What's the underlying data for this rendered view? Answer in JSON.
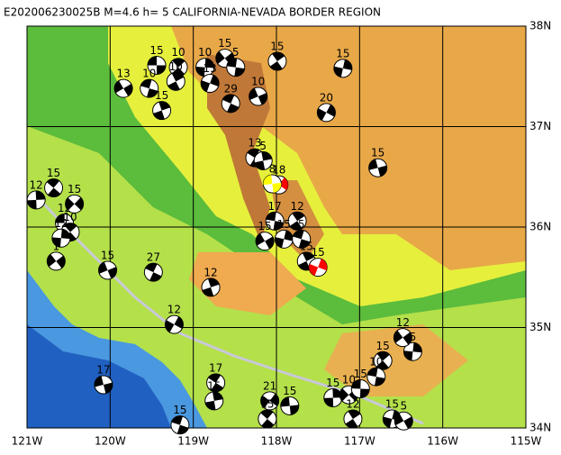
{
  "chart_data": {
    "type": "map",
    "title": "E202006230025B M=4.6 h=  5 CALIFORNIA-NEVADA BORDER REGION",
    "xlim": [
      -121,
      -115
    ],
    "ylim": [
      34,
      38
    ],
    "xticks": [
      {
        "value": -121,
        "label": "121W"
      },
      {
        "value": -120,
        "label": "120W"
      },
      {
        "value": -119,
        "label": "119W"
      },
      {
        "value": -118,
        "label": "118W"
      },
      {
        "value": -117,
        "label": "117W"
      },
      {
        "value": -116,
        "label": "116W"
      },
      {
        "value": -115,
        "label": "115W"
      }
    ],
    "yticks": [
      {
        "value": 34,
        "label": "34N"
      },
      {
        "value": 35,
        "label": "35N"
      },
      {
        "value": 36,
        "label": "36N"
      },
      {
        "value": 37,
        "label": "37N"
      },
      {
        "value": 38,
        "label": "38N"
      }
    ],
    "grid": true,
    "x": [
      -119.44,
      -119.18,
      -118.86,
      -118.62,
      -118.49,
      -117.99,
      -117.2,
      -119.84,
      -119.53,
      -119.21,
      -118.8,
      -118.22,
      -118.55,
      -119.38,
      -117.4,
      -116.78,
      -118.26,
      -118.16,
      -117.97,
      -118.05,
      -120.68,
      -120.89,
      -120.43,
      -120.55,
      -120.48,
      -120.59,
      -120.65,
      -118.02,
      -117.75,
      -117.91,
      -118.14,
      -117.7,
      -117.64,
      -117.5,
      -120.03,
      -119.48,
      -118.79,
      -119.23,
      -120.08,
      -118.73,
      -118.75,
      -118.08,
      -117.84,
      -118.11,
      -117.32,
      -117.13,
      -116.99,
      -116.72,
      -116.36,
      -116.48,
      -116.8,
      -117.08,
      -116.61,
      -116.47,
      -119.16
    ],
    "values": [
      37.61,
      37.59,
      37.59,
      37.68,
      37.59,
      37.65,
      37.58,
      37.38,
      37.38,
      37.45,
      37.43,
      37.3,
      37.23,
      37.16,
      37.14,
      36.59,
      36.69,
      36.66,
      36.42,
      36.43,
      36.39,
      36.27,
      36.23,
      36.04,
      35.95,
      35.89,
      35.66,
      36.06,
      36.06,
      35.88,
      35.86,
      35.88,
      35.66,
      35.6,
      35.57,
      35.55,
      35.4,
      35.03,
      34.43,
      34.45,
      34.27,
      34.27,
      34.22,
      34.09,
      34.3,
      34.33,
      34.39,
      34.67,
      34.76,
      34.9,
      34.51,
      34.09,
      34.09,
      34.07,
      34.03
    ],
    "depths": [
      15,
      10,
      10,
      15,
      5,
      15,
      15,
      13,
      10,
      10,
      13,
      10,
      29,
      15,
      20,
      15,
      13,
      5,
      18,
      8,
      15,
      12,
      15,
      12,
      10,
      12,
      1,
      17,
      12,
      15,
      15,
      5,
      15,
      15,
      15,
      27,
      12,
      12,
      17,
      17,
      15,
      21,
      15,
      15,
      15,
      10,
      15,
      15,
      5,
      12,
      10,
      12,
      15,
      5,
      15
    ],
    "colors": [
      "#000000",
      "#000000",
      "#000000",
      "#000000",
      "#000000",
      "#000000",
      "#000000",
      "#000000",
      "#000000",
      "#000000",
      "#000000",
      "#000000",
      "#000000",
      "#000000",
      "#000000",
      "#000000",
      "#000000",
      "#000000",
      "#ff0000",
      "#ffff00",
      "#000000",
      "#000000",
      "#000000",
      "#000000",
      "#000000",
      "#000000",
      "#000000",
      "#000000",
      "#000000",
      "#000000",
      "#000000",
      "#000000",
      "#000000",
      "#ff0000",
      "#000000",
      "#000000",
      "#000000",
      "#000000",
      "#000000",
      "#000000",
      "#000000",
      "#000000",
      "#000000",
      "#000000",
      "#000000",
      "#000000",
      "#000000",
      "#000000",
      "#000000",
      "#000000",
      "#000000",
      "#000000",
      "#000000",
      "#000000",
      "#000000"
    ]
  }
}
